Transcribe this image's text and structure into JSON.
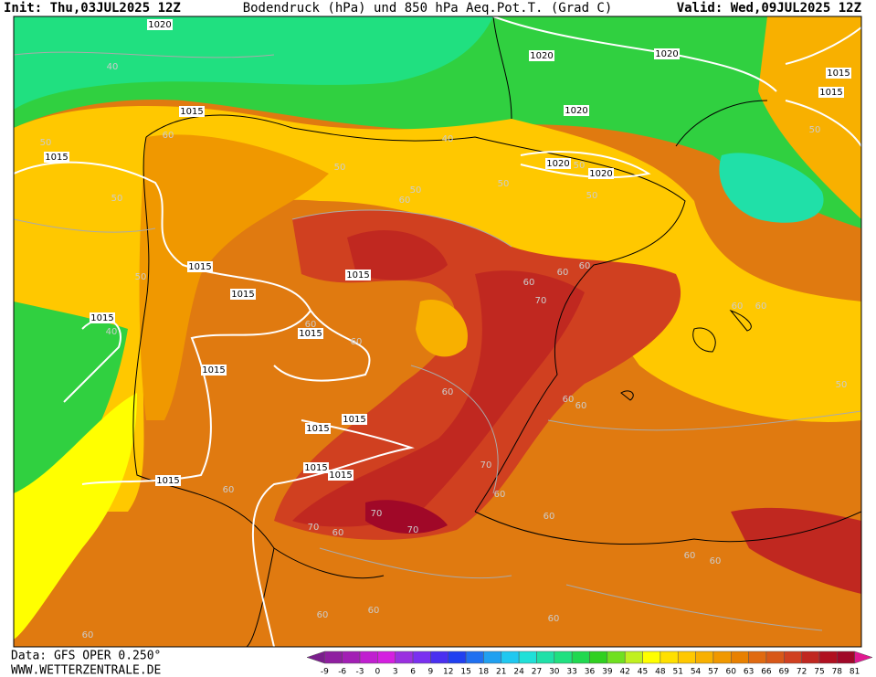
{
  "header": {
    "left": "Init: Thu,03JUL2025 12Z",
    "center": "Bodendruck (hPa) und 850 hPa Aeq.Pot.T. (Grad C)",
    "right": "Valid: Wed,09JUL2025 12Z"
  },
  "footer": {
    "source": "Data: GFS OPER 0.250°",
    "site": "WWW.WETTERZENTRALE.DE"
  },
  "colorbar": {
    "labels": [
      -9,
      -6,
      -3,
      0,
      3,
      6,
      9,
      12,
      15,
      18,
      21,
      24,
      27,
      30,
      33,
      36,
      39,
      42,
      45,
      48,
      51,
      54,
      57,
      60,
      63,
      66,
      69,
      72,
      75,
      78,
      81
    ],
    "colors": [
      "#7a1f8c",
      "#8f1fa0",
      "#a21fb4",
      "#c01fd0",
      "#d41fe0",
      "#9a30e0",
      "#7a30f0",
      "#4a30f0",
      "#2040f0",
      "#2070f0",
      "#20a0f0",
      "#20c8f0",
      "#20e0d8",
      "#20e0a8",
      "#20e080",
      "#20d850",
      "#30d020",
      "#70e020",
      "#c0f020",
      "#ffff00",
      "#ffe000",
      "#ffc800",
      "#f8b000",
      "#f09800",
      "#e88000",
      "#e06a10",
      "#d85818",
      "#d04020",
      "#c02820",
      "#b01020",
      "#a00828",
      "#e01890"
    ]
  },
  "contour_labels": [
    1020,
    40,
    1020,
    1020,
    1015,
    1015,
    1020,
    1015,
    50,
    60,
    40,
    50,
    1015,
    50,
    1020,
    50,
    1020,
    50,
    50,
    50,
    60,
    50,
    1015,
    50,
    60,
    60,
    1015,
    60,
    70,
    1015,
    60,
    60,
    1015,
    40,
    60,
    1015,
    60,
    1015,
    50,
    60,
    60,
    60,
    1015,
    1015,
    70,
    1015,
    1015,
    1015,
    60,
    60,
    70,
    60,
    70,
    70,
    60,
    60,
    60,
    60,
    60,
    60,
    60
  ]
}
